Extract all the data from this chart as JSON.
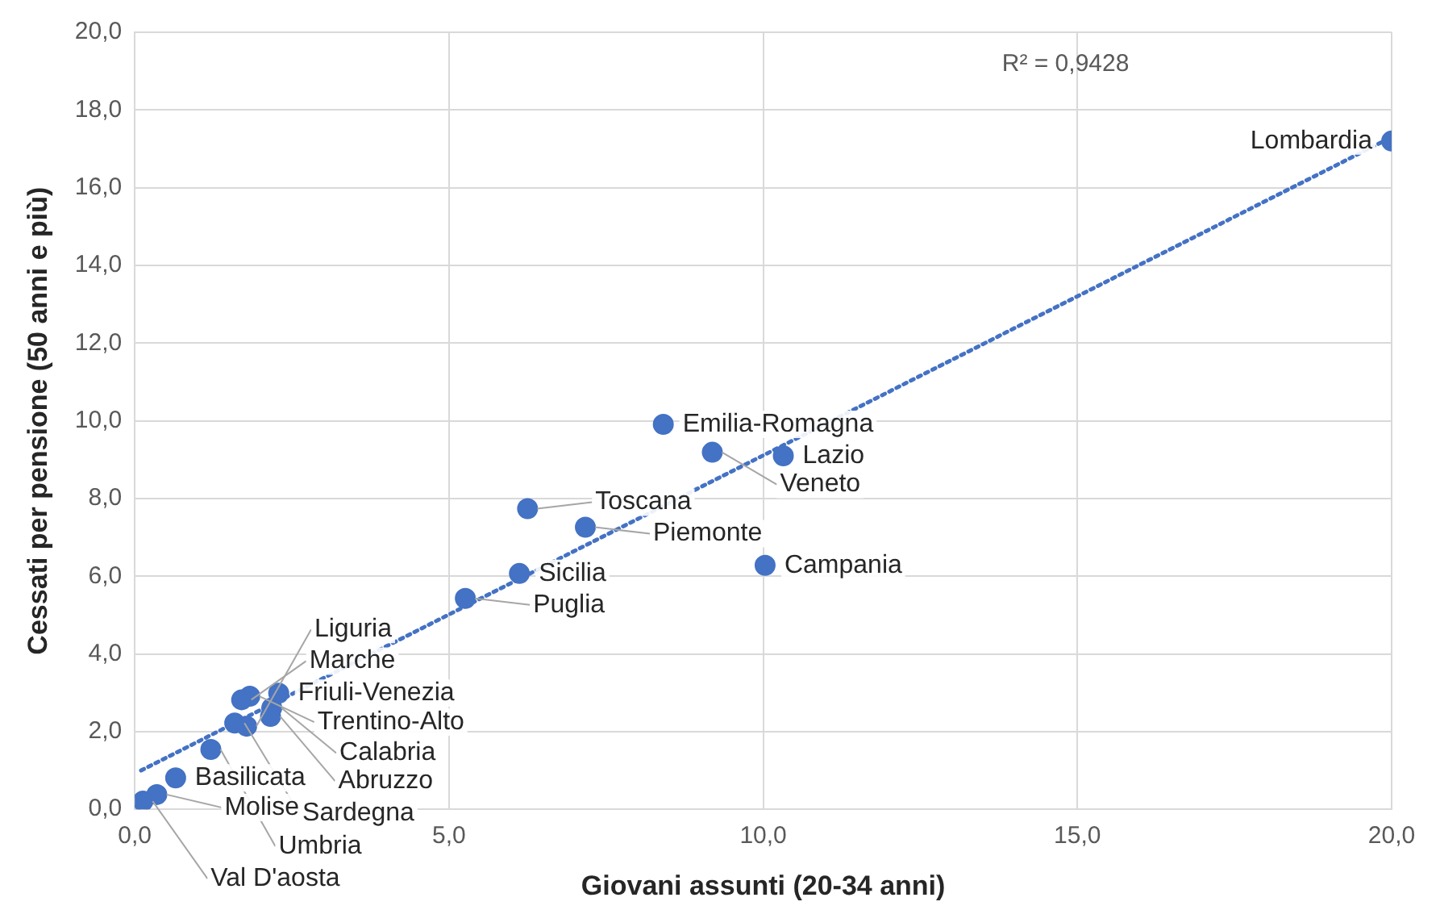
{
  "chart_data": {
    "type": "scatter",
    "xlabel": "Giovani assunti (20-34 anni)",
    "ylabel": "Cessati per pensione (50 anni e più)",
    "annotations": [
      "R² = 0,9428"
    ],
    "series": [
      {
        "type": "scatter",
        "color": "#4472c4",
        "marker": "circle",
        "x": [
          20.0,
          8.41,
          9.19,
          10.32,
          6.25,
          7.17,
          10.03,
          6.12,
          5.26,
          2.29,
          1.83,
          1.7,
          2.18,
          2.16,
          1.59,
          1.78,
          1.21,
          0.65,
          0.35,
          0.13
        ],
        "values": [
          17.2,
          9.91,
          9.19,
          9.1,
          7.74,
          7.26,
          6.28,
          6.07,
          5.43,
          2.99,
          2.91,
          2.82,
          2.61,
          2.39,
          2.22,
          2.14,
          1.54,
          0.81,
          0.38,
          0.21
        ],
        "value_labels": [
          "Lombardia",
          "Emilia-Romagna",
          "Veneto",
          "Lazio",
          "Toscana",
          "Piemonte",
          "Campania",
          "Sicilia",
          "Puglia",
          "Friuli-Venezia",
          "Trentino-Alto",
          "Marche",
          "Calabria",
          "Abruzzo",
          "Sardegna",
          "Liguria",
          "Umbria",
          "Basilicata",
          "Molise",
          "Val D'aosta"
        ]
      },
      {
        "type": "line",
        "color": "#4472c4",
        "line_style": "dotted",
        "marker": "none",
        "x": [
          0.1,
          20.0
        ],
        "values": [
          1.0,
          17.3
        ]
      }
    ],
    "xlim": [
      0,
      20
    ],
    "xticks": [
      {
        "value": 0,
        "label": "0,0"
      },
      {
        "value": 5,
        "label": "5,0"
      },
      {
        "value": 10,
        "label": "10,0"
      },
      {
        "value": 15,
        "label": "15,0"
      },
      {
        "value": 20,
        "label": "20,0"
      }
    ],
    "ylim": [
      0,
      20
    ],
    "yticks": [
      {
        "value": 0,
        "label": "0,0"
      },
      {
        "value": 2,
        "label": "2,0"
      },
      {
        "value": 4,
        "label": "4,0"
      },
      {
        "value": 6,
        "label": "6,0"
      },
      {
        "value": 8,
        "label": "8,0"
      },
      {
        "value": 10,
        "label": "10,0"
      },
      {
        "value": 12,
        "label": "12,0"
      },
      {
        "value": 14,
        "label": "14,0"
      },
      {
        "value": 16,
        "label": "16,0"
      },
      {
        "value": 18,
        "label": "18,0"
      },
      {
        "value": 20,
        "label": "20,0"
      }
    ],
    "grid": true,
    "legend": false
  }
}
